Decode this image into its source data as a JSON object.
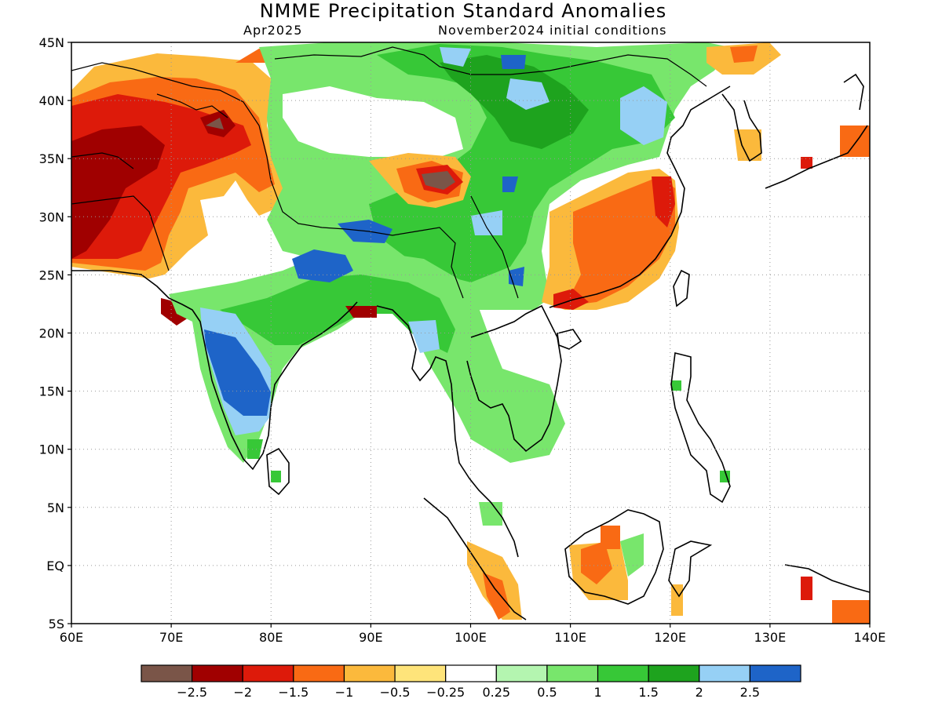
{
  "title": "NMME Precipitation Standard Anomalies",
  "subtitle_left": "Apr2025",
  "subtitle_right": "November2024 initial conditions",
  "map": {
    "lon_range": [
      60,
      140
    ],
    "lat_range": [
      -5,
      45
    ],
    "x_ticks": [
      "60E",
      "70E",
      "80E",
      "90E",
      "100E",
      "110E",
      "120E",
      "130E",
      "140E"
    ],
    "y_ticks": [
      "45N",
      "40N",
      "35N",
      "30N",
      "25N",
      "20N",
      "15N",
      "10N",
      "5N",
      "EQ",
      "5S"
    ],
    "grid": "dotted"
  },
  "legend": {
    "colors": [
      "#7a5548",
      "#a00000",
      "#dd1a0a",
      "#f96a14",
      "#fbb93c",
      "#fee47a",
      "#ffffff",
      "#b4f5b0",
      "#78e66c",
      "#37c837",
      "#1ea31e",
      "#96d0f5",
      "#1e64c8"
    ],
    "labels": [
      "−2.5",
      "−2",
      "−1.5",
      "−1",
      "−0.5",
      "−0.25",
      "0.25",
      "0.5",
      "1",
      "1.5",
      "2",
      "2.5"
    ]
  }
}
